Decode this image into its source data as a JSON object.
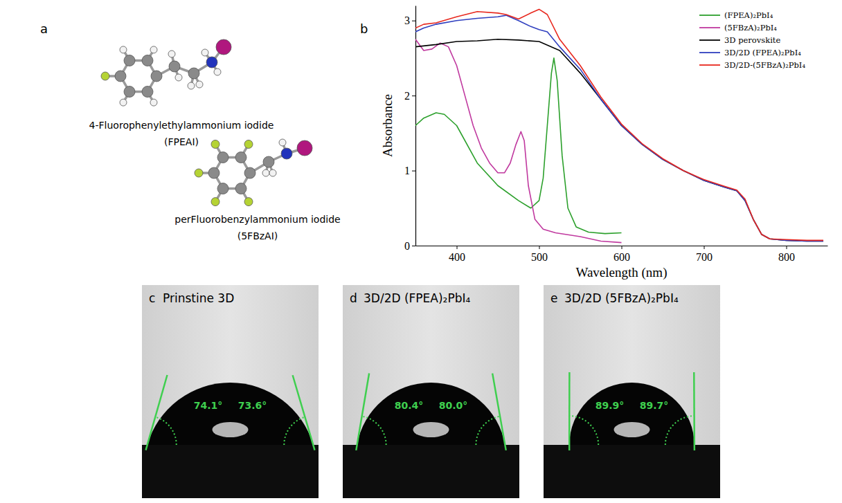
{
  "molecules": {
    "panel_label": "a",
    "items": [
      {
        "name": "4-Fluorophenylethylammonium iodide",
        "abbr": "(FPEAI)"
      },
      {
        "name": "perFluorobenzylammonium iodide",
        "abbr": "(5FBzAI)"
      }
    ]
  },
  "chart_data": {
    "panel_label": "b",
    "type": "line",
    "x_label": "Wavelength (nm)",
    "y_label": "Absorbance",
    "xlim": [
      350,
      850
    ],
    "xticks": [
      400,
      500,
      600,
      700,
      800
    ],
    "ylim": [
      0,
      3.2
    ],
    "yticks": [
      0,
      1,
      2,
      3
    ],
    "grid": false,
    "legend": "upper right",
    "series": [
      {
        "name": "(FPEA)₂PbI₄",
        "color": "#2ca02c",
        "x": [
          350,
          360,
          375,
          385,
          400,
          425,
          450,
          475,
          490,
          500,
          505,
          510,
          515,
          518,
          522,
          528,
          535,
          545,
          560,
          580,
          600
        ],
        "values": [
          1.6,
          1.7,
          1.77,
          1.75,
          1.6,
          1.1,
          0.8,
          0.6,
          0.5,
          0.6,
          0.9,
          1.6,
          2.3,
          2.5,
          2.2,
          1.2,
          0.5,
          0.25,
          0.18,
          0.16,
          0.17
        ]
      },
      {
        "name": "(5FBzA)₂PbI₄",
        "color": "#c0399f",
        "x": [
          350,
          360,
          370,
          380,
          390,
          400,
          410,
          420,
          430,
          440,
          450,
          458,
          465,
          472,
          478,
          482,
          487,
          495,
          505,
          520,
          550,
          575,
          600
        ],
        "values": [
          2.75,
          2.6,
          2.62,
          2.7,
          2.65,
          2.4,
          2.0,
          1.6,
          1.3,
          1.1,
          0.97,
          0.97,
          1.1,
          1.35,
          1.52,
          1.4,
          0.8,
          0.35,
          0.22,
          0.17,
          0.12,
          0.06,
          0.04
        ]
      },
      {
        "name": "3D perovskite",
        "color": "#000000",
        "x": [
          350,
          375,
          400,
          425,
          450,
          475,
          500,
          525,
          550,
          575,
          600,
          625,
          650,
          675,
          700,
          725,
          740,
          750,
          760,
          770,
          780,
          800,
          825,
          845
        ],
        "values": [
          2.65,
          2.68,
          2.72,
          2.73,
          2.75,
          2.74,
          2.72,
          2.6,
          2.3,
          1.95,
          1.6,
          1.35,
          1.15,
          1.0,
          0.87,
          0.78,
          0.73,
          0.6,
          0.35,
          0.15,
          0.09,
          0.07,
          0.06,
          0.06
        ]
      },
      {
        "name": "3D/2D (FPEA)₂PbI₄",
        "color": "#2f3fbf",
        "x": [
          350,
          360,
          375,
          400,
          425,
          450,
          460,
          475,
          490,
          500,
          510,
          525,
          550,
          575,
          600,
          625,
          650,
          675,
          700,
          725,
          740,
          750,
          760,
          770,
          780,
          800,
          825,
          845
        ],
        "values": [
          2.85,
          2.9,
          2.95,
          3.0,
          3.03,
          3.05,
          3.07,
          3.0,
          2.92,
          2.88,
          2.85,
          2.65,
          2.35,
          1.95,
          1.6,
          1.35,
          1.15,
          1.0,
          0.87,
          0.78,
          0.73,
          0.6,
          0.35,
          0.15,
          0.09,
          0.07,
          0.06,
          0.06
        ]
      },
      {
        "name": "3D/2D-(5FBzA)₂PbI₄",
        "color": "#e8281e",
        "x": [
          350,
          360,
          375,
          400,
          425,
          450,
          460,
          475,
          490,
          500,
          510,
          525,
          550,
          575,
          600,
          625,
          650,
          675,
          700,
          725,
          740,
          750,
          760,
          770,
          780,
          800,
          825,
          845
        ],
        "values": [
          2.9,
          2.95,
          2.97,
          3.05,
          3.12,
          3.1,
          3.08,
          3.02,
          3.1,
          3.15,
          3.08,
          2.75,
          2.4,
          1.98,
          1.62,
          1.36,
          1.16,
          1.0,
          0.88,
          0.79,
          0.74,
          0.62,
          0.35,
          0.15,
          0.09,
          0.08,
          0.07,
          0.07
        ]
      }
    ]
  },
  "contact_angles": [
    {
      "panel_label": "c",
      "title": "Prinstine 3D",
      "values": [
        74.1,
        73.6
      ],
      "value_labels": [
        "74.1°",
        "73.6°"
      ]
    },
    {
      "panel_label": "d",
      "title": "3D/2D (FPEA)₂PbI₄",
      "values": [
        80.4,
        80.0
      ],
      "value_labels": [
        "80.4°",
        "80.0°"
      ]
    },
    {
      "panel_label": "e",
      "title": "3D/2D (5FBzA)₂PbI₄",
      "values": [
        89.9,
        89.7
      ],
      "value_labels": [
        "89.9°",
        "89.7°"
      ]
    }
  ]
}
